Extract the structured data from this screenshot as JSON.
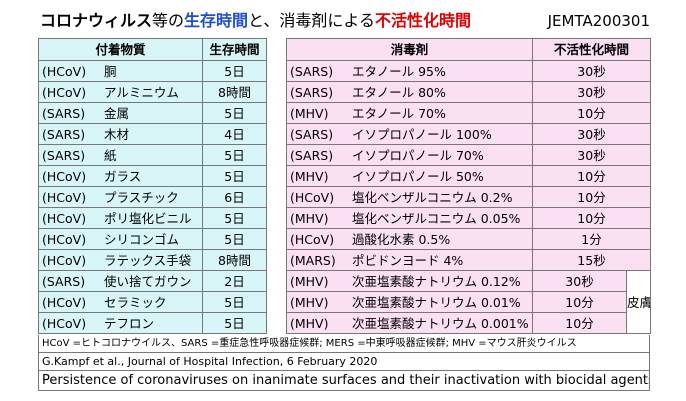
{
  "title": {
    "part1": "コロナウィルス",
    "part2": "等の",
    "part3": "生存時間",
    "part4": "と、消毒剤による",
    "part5": "不活性化時間",
    "code": "JEMTA200301"
  },
  "left_headers": [
    "付着物質",
    "生存時間"
  ],
  "right_headers": [
    "消毒剤",
    "不活性化時間"
  ],
  "rows": [
    {
      "l_src": "(HCoV)",
      "l_mat": "胴",
      "l_time": "5日",
      "r_src": "(SARS)",
      "r_agent": "エタノール 95%",
      "r_time": "30秒"
    },
    {
      "l_src": "(HCoV)",
      "l_mat": "アルミニウム",
      "l_time": "8時間",
      "r_src": "(SARS)",
      "r_agent": "エタノール 80%",
      "r_time": "30秒"
    },
    {
      "l_src": "(SARS)",
      "l_mat": "金属",
      "l_time": "5日",
      "r_src": "(MHV)",
      "r_agent": "エタノール 70%",
      "r_time": "10分"
    },
    {
      "l_src": "(SARS)",
      "l_mat": "木材",
      "l_time": "4日",
      "r_src": "(SARS)",
      "r_agent": "イソプロパノール 100%",
      "r_time": "30秒"
    },
    {
      "l_src": "(SARS)",
      "l_mat": "紙",
      "l_time": "5日",
      "r_src": "(SARS)",
      "r_agent": "イソプロパノール 70%",
      "r_time": "30秒"
    },
    {
      "l_src": "(HCoV)",
      "l_mat": "ガラス",
      "l_time": "5日",
      "r_src": "(MHV)",
      "r_agent": "イソプロパノール 50%",
      "r_time": "10分"
    },
    {
      "l_src": "(HCoV)",
      "l_mat": "プラスチック",
      "l_time": "6日",
      "r_src": "(HCoV)",
      "r_agent": "塩化ベンザルコニウム 0.2%",
      "r_time": "10分"
    },
    {
      "l_src": "(HCoV)",
      "l_mat": "ポリ塩化ビニル",
      "l_time": "5日",
      "r_src": "(MHV)",
      "r_agent": "塩化ベンザルコニウム 0.05%",
      "r_time": "10分"
    },
    {
      "l_src": "(HCoV)",
      "l_mat": "シリコンゴム",
      "l_time": "5日",
      "r_src": "(HCoV)",
      "r_agent": "過酸化水素 0.5%",
      "r_time": "1分"
    },
    {
      "l_src": "(HCoV)",
      "l_mat": "ラテックス手袋",
      "l_time": "8時間",
      "r_src": "(MARS)",
      "r_agent": "ポビドンヨード 4%",
      "r_time": "15秒"
    },
    {
      "l_src": "(SARS)",
      "l_mat": "使い捨てガウン",
      "l_time": "2日",
      "r_src": "(MHV)",
      "r_agent": "次亜塩素酸ナトリウム 0.12%",
      "r_time": "30秒"
    },
    {
      "l_src": "(HCoV)",
      "l_mat": "セラミック",
      "l_time": "5日",
      "r_src": "(MHV)",
      "r_agent": "次亜塩素酸ナトリウム 0.01%",
      "r_time": "10分"
    },
    {
      "l_src": "(HCoV)",
      "l_mat": "テフロン",
      "l_time": "5日",
      "r_src": "(MHV)",
      "r_agent": "次亜塩素酸ナトリウム 0.001%",
      "r_time": "10分"
    }
  ],
  "side_note": "皮膚不可",
  "footnote_abbrev": "HCoV =ヒトコロナウイルス、SARS =重症急性呼吸器症候群; MERS =中東呼吸器症候群; MHV =マウス肝炎ウイルス",
  "citation": "G.Kampf et al.,   Journal of Hospital Infection, 6 February 2020",
  "paper_title": "Persistence of coronaviruses on inanimate surfaces and their inactivation with biocidal agents"
}
